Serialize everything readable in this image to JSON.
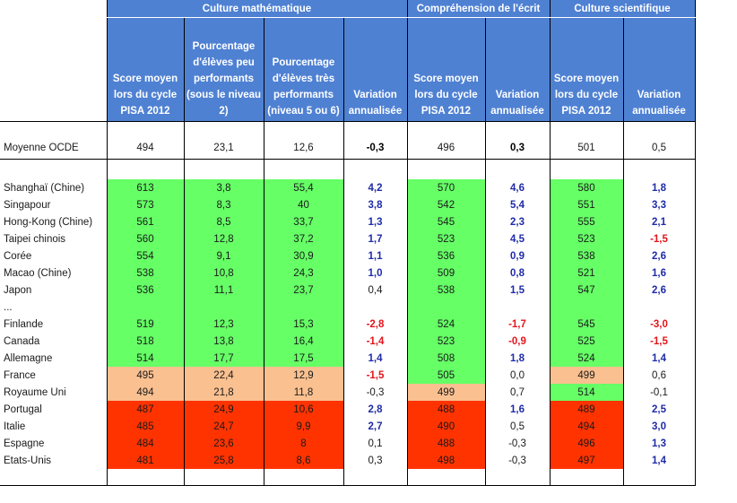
{
  "header": {
    "groups": [
      "Culture mathématique",
      "Compréhension de l'écrit",
      "Culture scientifique"
    ],
    "columns": [
      "Score moyen lors du cycle PISA 2012",
      "Pourcentage d'élèves peu performants (sous le niveau 2)",
      "Pourcentage d'élèves très performants (niveau 5 ou 6)",
      "Variation annualisée",
      "Score moyen lors du cycle PISA 2012",
      "Variation annualisée",
      "Score moyen lors du cycle PISA 2012",
      "Variation annualisée"
    ]
  },
  "ocde": {
    "name": "Moyenne OCDE",
    "values": [
      "494",
      "23,1",
      "12,6",
      "-0,3",
      "496",
      "0,3",
      "501",
      "0,5"
    ]
  },
  "ellipsis": "...",
  "colors": {
    "header": "#4f81d3",
    "green": "#66ff66",
    "orange": "#fac090",
    "red": "#ff3300",
    "positive_variation": "#1f2ba8",
    "negative_variation": "#e3141b"
  },
  "rows": [
    {
      "name": "Shanghaï (Chine)",
      "values": [
        "613",
        "3,8",
        "55,4",
        "4,2",
        "570",
        "4,6",
        "580",
        "1,8"
      ]
    },
    {
      "name": "Singapour",
      "values": [
        "573",
        "8,3",
        "40",
        "3,8",
        "542",
        "5,4",
        "551",
        "3,3"
      ]
    },
    {
      "name": "Hong-Kong (Chine)",
      "values": [
        "561",
        "8,5",
        "33,7",
        "1,3",
        "545",
        "2,3",
        "555",
        "2,1"
      ]
    },
    {
      "name": "Taipei chinois",
      "values": [
        "560",
        "12,8",
        "37,2",
        "1,7",
        "523",
        "4,5",
        "523",
        "-1,5"
      ]
    },
    {
      "name": "Corée",
      "values": [
        "554",
        "9,1",
        "30,9",
        "1,1",
        "536",
        "0,9",
        "538",
        "2,6"
      ]
    },
    {
      "name": "Macao (Chine)",
      "values": [
        "538",
        "10,8",
        "24,3",
        "1,0",
        "509",
        "0,8",
        "521",
        "1,6"
      ]
    },
    {
      "name": "Japon",
      "values": [
        "536",
        "11,1",
        "23,7",
        "0,4",
        "538",
        "1,5",
        "547",
        "2,6"
      ]
    },
    {
      "name": "Finlande",
      "values": [
        "519",
        "12,3",
        "15,3",
        "-2,8",
        "524",
        "-1,7",
        "545",
        "-3,0"
      ]
    },
    {
      "name": "Canada",
      "values": [
        "518",
        "13,8",
        "16,4",
        "-1,4",
        "523",
        "-0,9",
        "525",
        "-1,5"
      ]
    },
    {
      "name": "Allemagne",
      "values": [
        "514",
        "17,7",
        "17,5",
        "1,4",
        "508",
        "1,8",
        "524",
        "1,4"
      ]
    },
    {
      "name": "France",
      "values": [
        "495",
        "22,4",
        "12,9",
        "-1,5",
        "505",
        "0,0",
        "499",
        "0,6"
      ]
    },
    {
      "name": "Royaume Uni",
      "values": [
        "494",
        "21,8",
        "11,8",
        "-0,3",
        "499",
        "0,7",
        "514",
        "-0,1"
      ]
    },
    {
      "name": "Portugal",
      "values": [
        "487",
        "24,9",
        "10,6",
        "2,8",
        "488",
        "1,6",
        "489",
        "2,5"
      ]
    },
    {
      "name": "Italie",
      "values": [
        "485",
        "24,7",
        "9,9",
        "2,7",
        "490",
        "0,5",
        "494",
        "3,0"
      ]
    },
    {
      "name": "Espagne",
      "values": [
        "484",
        "23,6",
        "8",
        "0,1",
        "488",
        "-0,3",
        "496",
        "1,3"
      ]
    },
    {
      "name": "Etats-Unis",
      "values": [
        "481",
        "25,8",
        "8,6",
        "0,3",
        "498",
        "-0,3",
        "497",
        "1,4"
      ]
    }
  ]
}
